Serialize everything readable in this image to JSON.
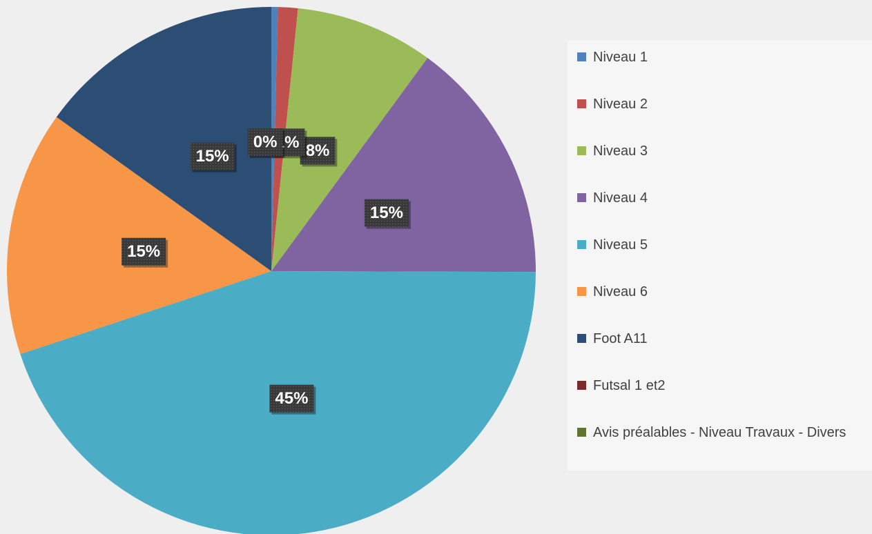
{
  "chart_data": {
    "type": "pie",
    "categories": [
      "Niveau 1",
      "Niveau 2",
      "Niveau 3",
      "Niveau 4",
      "Niveau 5",
      "Niveau 6",
      "Foot A11",
      "Futsal 1 et2",
      "Avis préalables - Niveau Travaux - Divers"
    ],
    "values": [
      0.4,
      1.2,
      8.4,
      14.9,
      44.6,
      14.9,
      15.0,
      0,
      0
    ],
    "value_labels": [
      "0%",
      "1%",
      "8%",
      "15%",
      "45%",
      "15%",
      "15%",
      null,
      null
    ],
    "colors": [
      "#4f81bd",
      "#c0504d",
      "#9bbb59",
      "#8064a2",
      "#4bacc6",
      "#f79646",
      "#2c4d74",
      "#772c2a",
      "#5f7530"
    ],
    "legend": "right"
  }
}
